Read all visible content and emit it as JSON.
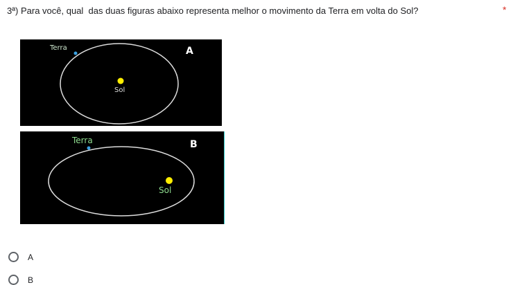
{
  "question": {
    "text": "3ª) Para você, qual  das duas figuras abaixo representa melhor o movimento da Terra em volta do Sol?",
    "required": "*"
  },
  "figures": [
    {
      "letter": "A",
      "earth": "Terra",
      "sun": "Sol"
    },
    {
      "letter": "B",
      "earth": "Terra",
      "sun": "Sol"
    }
  ],
  "options": [
    "A",
    "B"
  ]
}
